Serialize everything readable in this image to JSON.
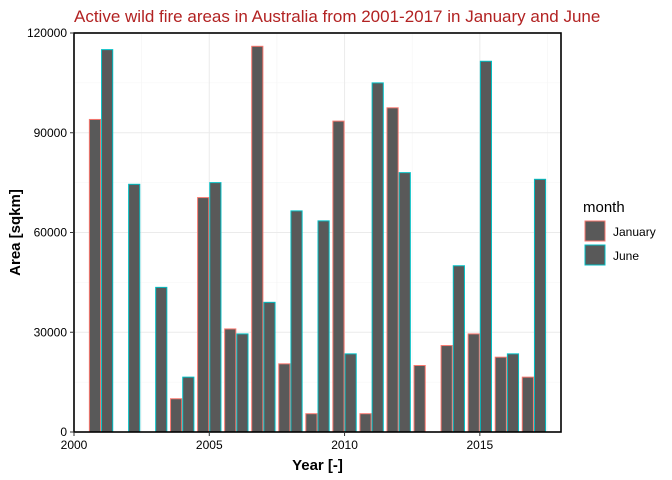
{
  "chart_data": {
    "type": "bar",
    "title": "Active wild fire areas in Australia from 2001-2017 in January and June",
    "xlabel": "Year [-]",
    "ylabel": "Area [sqkm]",
    "xlim": [
      2000,
      2018
    ],
    "ylim": [
      0,
      120000
    ],
    "x_ticks": [
      2000,
      2005,
      2010,
      2015
    ],
    "y_ticks": [
      0,
      30000,
      60000,
      90000,
      120000
    ],
    "x_tick_labels": [
      "2000",
      "2005",
      "2010",
      "2015"
    ],
    "y_tick_labels": [
      "0",
      "30000",
      "60000",
      "90000",
      "120000"
    ],
    "grid": true,
    "legend": {
      "title": "month",
      "position": "right"
    },
    "colors": {
      "fill": "#595959",
      "title": "#b22222"
    },
    "x": [
      2001,
      2002,
      2003,
      2004,
      2005,
      2006,
      2007,
      2008,
      2009,
      2010,
      2011,
      2012,
      2013,
      2014,
      2015,
      2016,
      2017
    ],
    "series": [
      {
        "name": "January",
        "color": "#f8766d",
        "values": [
          94000,
          null,
          null,
          10000,
          70500,
          31000,
          116000,
          20500,
          5500,
          93500,
          5500,
          97500,
          20000,
          26000,
          29500,
          22500,
          16500
        ]
      },
      {
        "name": "June",
        "color": "#00bfc4",
        "values": [
          115000,
          74500,
          43500,
          16500,
          75000,
          29500,
          39000,
          66500,
          63500,
          23500,
          105000,
          78000,
          null,
          50000,
          111500,
          23500,
          76000
        ]
      }
    ]
  }
}
